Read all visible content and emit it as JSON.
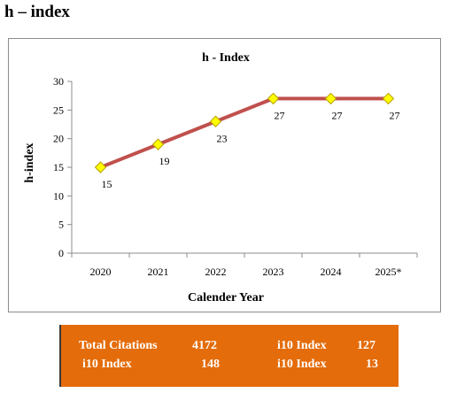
{
  "page": {
    "heading": "h – index"
  },
  "chart_data": {
    "type": "line",
    "title": "h - Index",
    "xlabel": "Calender Year",
    "ylabel": "h-index",
    "categories": [
      "2020",
      "2021",
      "2022",
      "2023",
      "2024",
      "2025*"
    ],
    "series": [
      {
        "values": [
          15,
          19,
          23,
          27,
          27,
          27
        ]
      }
    ],
    "data_labels": [
      "15",
      "19",
      "23",
      "27",
      "27",
      "27"
    ],
    "ylim": [
      0,
      30
    ],
    "yticks": [
      "0",
      "5",
      "10",
      "15",
      "20",
      "25",
      "30"
    ],
    "grid": false,
    "legend": "none",
    "colors": {
      "line": "#c0504d",
      "marker_fill": "#ffff00",
      "marker_stroke": "#b8a000"
    }
  },
  "stats": {
    "row1_left_label": "Total Citations",
    "row1_left_value": "4172",
    "row1_right_label": "i10 Index",
    "row1_right_value": "127",
    "row2_left_label": "i10 Index",
    "row2_left_value": "148",
    "row2_right_label": "i10 Index",
    "row2_right_value": "13",
    "bg_color": "#e46c0a"
  }
}
